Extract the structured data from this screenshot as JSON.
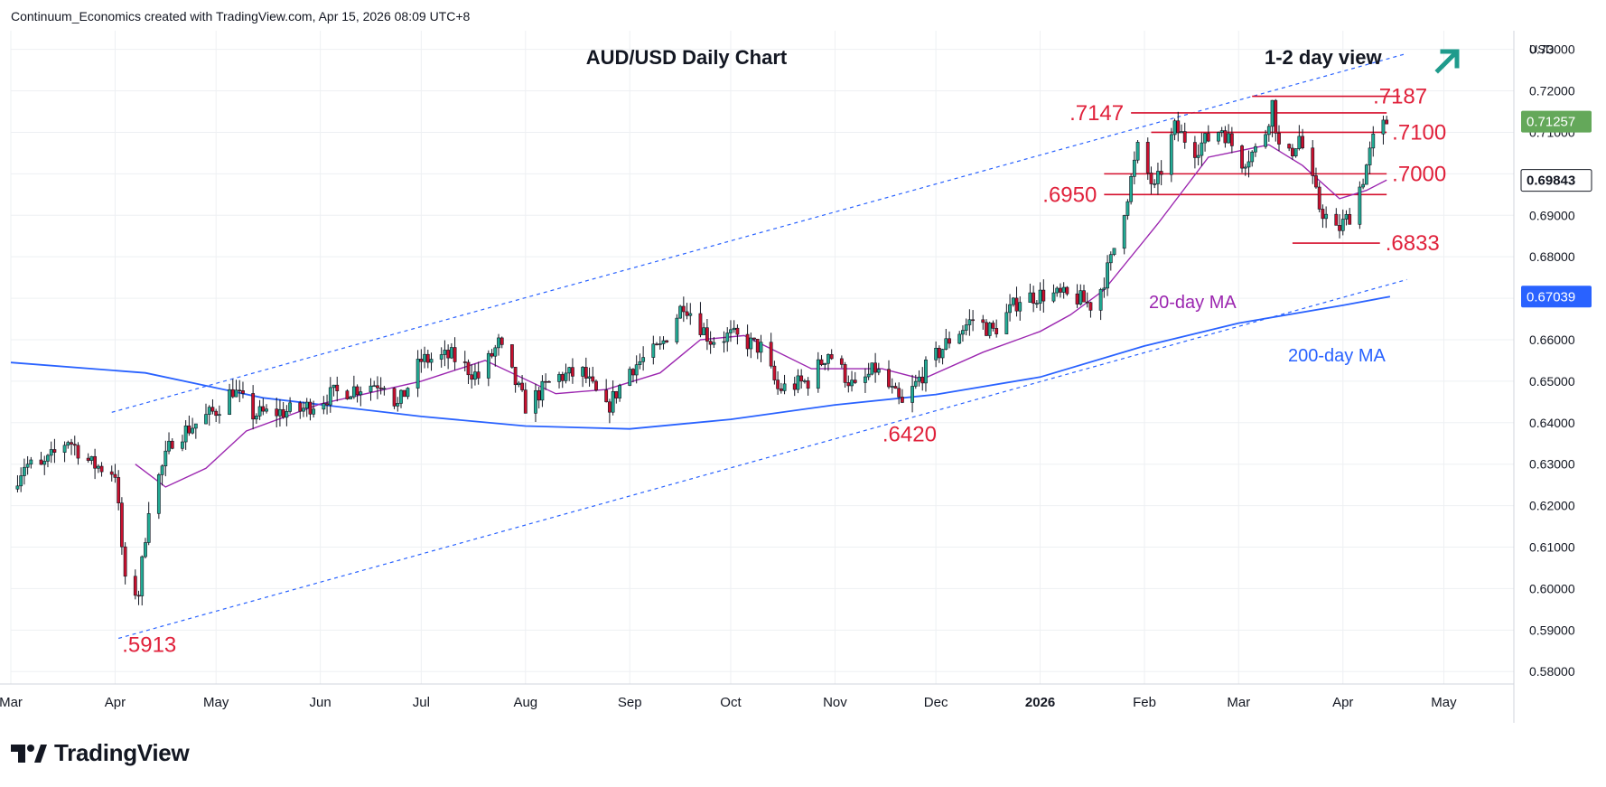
{
  "header": {
    "attribution": "Continuum_Economics created with TradingView.com, Apr 15, 2026 08:09 UTC+8"
  },
  "brand": {
    "name": "TradingView"
  },
  "colors": {
    "up": "#22ab94",
    "down": "#c8102e",
    "grid": "#eef0f3",
    "channel": "#2962ff",
    "ma20": "#9c27b0",
    "ma200": "#2962ff",
    "level": "#d5102e",
    "level_text": "#e0213b",
    "price_badge": "#64a85a",
    "arrow": "#1f9b8c"
  },
  "chart_data": {
    "type": "candlestick",
    "title": "AUD/USD Daily Chart",
    "subtitle": "1-2 day view",
    "view_icon": "arrow-up-right-icon",
    "currency_label": "USD",
    "ylim": [
      0.577,
      0.7345
    ],
    "y_ticks": [
      "0.73000",
      "0.72000",
      "0.71000",
      "0.70000",
      "0.69000",
      "0.68000",
      "0.67000",
      "0.66000",
      "0.65000",
      "0.64000",
      "0.63000",
      "0.62000",
      "0.61000",
      "0.60000",
      "0.59000",
      "0.58000"
    ],
    "x_ticks": [
      "Mar",
      "Apr",
      "May",
      "Jun",
      "Jul",
      "Aug",
      "Sep",
      "Oct",
      "Nov",
      "Dec",
      "2026",
      "Feb",
      "Mar",
      "Apr",
      "May"
    ],
    "price_badges": [
      {
        "label": "0.71257",
        "value": 0.71257,
        "style": "last"
      },
      {
        "label": "0.69843",
        "value": 0.69843,
        "style": "ma20"
      },
      {
        "label": "0.67039",
        "value": 0.67039,
        "style": "ma200"
      }
    ],
    "levels": [
      {
        "label": ".7187",
        "value": 0.7187,
        "from": "2026-03-05",
        "to": "2026-04-18"
      },
      {
        "label": ".7147",
        "value": 0.7147,
        "from": "2026-01-28",
        "to": "2026-04-14"
      },
      {
        "label": ".7100",
        "value": 0.71,
        "from": "2026-02-03",
        "to": "2026-04-14"
      },
      {
        "label": ".7000",
        "value": 0.7,
        "from": "2026-01-20",
        "to": "2026-04-14"
      },
      {
        "label": ".6950",
        "value": 0.695,
        "from": "2026-01-20",
        "to": "2026-04-14"
      },
      {
        "label": ".6833",
        "value": 0.6833,
        "from": "2026-03-17",
        "to": "2026-04-12"
      }
    ],
    "annotations": [
      {
        "label": ".5913",
        "date": "2025-04-09",
        "value": 0.5913
      },
      {
        "label": ".6420",
        "date": "2025-11-21",
        "value": 0.642
      },
      {
        "label": "20-day MA",
        "series": "ma20"
      },
      {
        "label": "200-day MA",
        "series": "ma200"
      }
    ],
    "channel": {
      "upper": [
        {
          "date": "2025-03-31",
          "value": 0.6425
        },
        {
          "date": "2026-04-20",
          "value": 0.729
        }
      ],
      "lower": [
        {
          "date": "2025-04-02",
          "value": 0.588
        },
        {
          "date": "2026-04-20",
          "value": 0.6745
        }
      ]
    },
    "ma200_points": [
      {
        "date": "2025-03-01",
        "value": 0.6545
      },
      {
        "date": "2025-04-10",
        "value": 0.652
      },
      {
        "date": "2025-05-15",
        "value": 0.646
      },
      {
        "date": "2025-07-01",
        "value": 0.6415
      },
      {
        "date": "2025-08-01",
        "value": 0.6392
      },
      {
        "date": "2025-09-01",
        "value": 0.6385
      },
      {
        "date": "2025-10-01",
        "value": 0.6408
      },
      {
        "date": "2025-11-01",
        "value": 0.6443
      },
      {
        "date": "2025-12-01",
        "value": 0.6468
      },
      {
        "date": "2026-01-01",
        "value": 0.651
      },
      {
        "date": "2026-02-01",
        "value": 0.6585
      },
      {
        "date": "2026-03-01",
        "value": 0.664
      },
      {
        "date": "2026-04-01",
        "value": 0.6683
      },
      {
        "date": "2026-04-15",
        "value": 0.6704
      }
    ],
    "ma20_points": [
      {
        "date": "2025-04-07",
        "value": 0.63
      },
      {
        "date": "2025-04-16",
        "value": 0.6245
      },
      {
        "date": "2025-04-28",
        "value": 0.629
      },
      {
        "date": "2025-05-10",
        "value": 0.638
      },
      {
        "date": "2025-06-01",
        "value": 0.6445
      },
      {
        "date": "2025-07-01",
        "value": 0.65
      },
      {
        "date": "2025-07-20",
        "value": 0.655
      },
      {
        "date": "2025-08-10",
        "value": 0.647
      },
      {
        "date": "2025-08-25",
        "value": 0.648
      },
      {
        "date": "2025-09-10",
        "value": 0.652
      },
      {
        "date": "2025-09-22",
        "value": 0.66
      },
      {
        "date": "2025-10-05",
        "value": 0.661
      },
      {
        "date": "2025-10-25",
        "value": 0.653
      },
      {
        "date": "2025-11-15",
        "value": 0.653
      },
      {
        "date": "2025-11-27",
        "value": 0.6505
      },
      {
        "date": "2025-12-15",
        "value": 0.657
      },
      {
        "date": "2026-01-01",
        "value": 0.662
      },
      {
        "date": "2026-01-10",
        "value": 0.666
      },
      {
        "date": "2026-01-20",
        "value": 0.672
      },
      {
        "date": "2026-02-05",
        "value": 0.688
      },
      {
        "date": "2026-02-20",
        "value": 0.704
      },
      {
        "date": "2026-03-10",
        "value": 0.707
      },
      {
        "date": "2026-03-20",
        "value": 0.702
      },
      {
        "date": "2026-03-31",
        "value": 0.694
      },
      {
        "date": "2026-04-08",
        "value": 0.696
      },
      {
        "date": "2026-04-14",
        "value": 0.6985
      }
    ],
    "close_path": [
      {
        "date": "2025-03-01",
        "value": 0.624
      },
      {
        "date": "2025-03-05",
        "value": 0.63
      },
      {
        "date": "2025-03-10",
        "value": 0.629
      },
      {
        "date": "2025-03-18",
        "value": 0.636
      },
      {
        "date": "2025-03-25",
        "value": 0.63
      },
      {
        "date": "2025-04-01",
        "value": 0.628
      },
      {
        "date": "2025-04-04",
        "value": 0.601
      },
      {
        "date": "2025-04-08",
        "value": 0.599
      },
      {
        "date": "2025-04-11",
        "value": 0.62
      },
      {
        "date": "2025-04-18",
        "value": 0.636
      },
      {
        "date": "2025-05-01",
        "value": 0.643
      },
      {
        "date": "2025-05-06",
        "value": 0.648
      },
      {
        "date": "2025-05-12",
        "value": 0.642
      },
      {
        "date": "2025-05-26",
        "value": 0.643
      },
      {
        "date": "2025-06-05",
        "value": 0.647
      },
      {
        "date": "2025-06-20",
        "value": 0.65
      },
      {
        "date": "2025-06-24",
        "value": 0.644
      },
      {
        "date": "2025-07-01",
        "value": 0.655
      },
      {
        "date": "2025-07-10",
        "value": 0.656
      },
      {
        "date": "2025-07-18",
        "value": 0.651
      },
      {
        "date": "2025-07-24",
        "value": 0.659
      },
      {
        "date": "2025-08-01",
        "value": 0.644
      },
      {
        "date": "2025-08-10",
        "value": 0.651
      },
      {
        "date": "2025-08-18",
        "value": 0.652
      },
      {
        "date": "2025-08-25",
        "value": 0.643
      },
      {
        "date": "2025-09-01",
        "value": 0.653
      },
      {
        "date": "2025-09-10",
        "value": 0.658
      },
      {
        "date": "2025-09-17",
        "value": 0.669
      },
      {
        "date": "2025-09-25",
        "value": 0.66
      },
      {
        "date": "2025-10-01",
        "value": 0.661
      },
      {
        "date": "2025-10-10",
        "value": 0.658
      },
      {
        "date": "2025-10-15",
        "value": 0.648
      },
      {
        "date": "2025-10-24",
        "value": 0.65
      },
      {
        "date": "2025-10-30",
        "value": 0.657
      },
      {
        "date": "2025-11-07",
        "value": 0.648
      },
      {
        "date": "2025-11-13",
        "value": 0.653
      },
      {
        "date": "2025-11-21",
        "value": 0.644
      },
      {
        "date": "2025-11-28",
        "value": 0.653
      },
      {
        "date": "2025-12-05",
        "value": 0.66
      },
      {
        "date": "2025-12-12",
        "value": 0.665
      },
      {
        "date": "2025-12-18",
        "value": 0.662
      },
      {
        "date": "2025-12-26",
        "value": 0.67
      },
      {
        "date": "2026-01-03",
        "value": 0.671
      },
      {
        "date": "2026-01-12",
        "value": 0.67
      },
      {
        "date": "2026-01-17",
        "value": 0.668
      },
      {
        "date": "2026-01-22",
        "value": 0.679
      },
      {
        "date": "2026-01-27",
        "value": 0.695
      },
      {
        "date": "2026-01-30",
        "value": 0.706
      },
      {
        "date": "2026-02-04",
        "value": 0.696
      },
      {
        "date": "2026-02-10",
        "value": 0.711
      },
      {
        "date": "2026-02-16",
        "value": 0.706
      },
      {
        "date": "2026-02-24",
        "value": 0.711
      },
      {
        "date": "2026-03-02",
        "value": 0.703
      },
      {
        "date": "2026-03-08",
        "value": 0.707
      },
      {
        "date": "2026-03-11",
        "value": 0.717
      },
      {
        "date": "2026-03-14",
        "value": 0.701
      },
      {
        "date": "2026-03-19",
        "value": 0.709
      },
      {
        "date": "2026-03-25",
        "value": 0.692
      },
      {
        "date": "2026-03-30",
        "value": 0.686
      },
      {
        "date": "2026-04-03",
        "value": 0.69
      },
      {
        "date": "2026-04-07",
        "value": 0.699
      },
      {
        "date": "2026-04-10",
        "value": 0.708
      },
      {
        "date": "2026-04-14",
        "value": 0.7126
      }
    ]
  }
}
